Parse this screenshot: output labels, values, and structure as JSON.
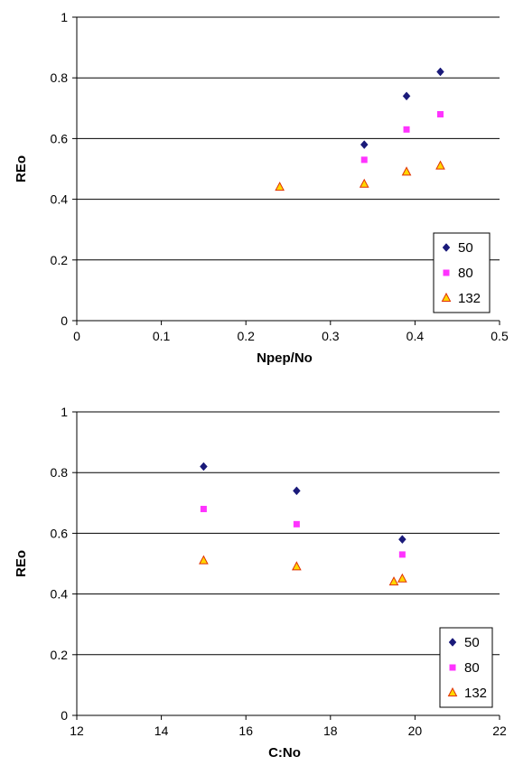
{
  "chart_data": [
    {
      "type": "scatter",
      "xlabel": "Npep/No",
      "ylabel": "REo",
      "xlim": [
        0,
        0.5
      ],
      "ylim": [
        0,
        1
      ],
      "xticks": [
        "0",
        "0.1",
        "0.2",
        "0.3",
        "0.4",
        "0.5"
      ],
      "yticks": [
        "0",
        "0.2",
        "0.4",
        "0.6",
        "0.8",
        "1"
      ],
      "grid": "horizontal",
      "legend_position": "bottom-right",
      "series": [
        {
          "name": "50",
          "marker": "diamond",
          "color": "#1a1a7a",
          "points": [
            [
              0.34,
              0.58
            ],
            [
              0.39,
              0.74
            ],
            [
              0.43,
              0.82
            ]
          ]
        },
        {
          "name": "80",
          "marker": "square",
          "color": "#ff33ff",
          "points": [
            [
              0.34,
              0.53
            ],
            [
              0.39,
              0.63
            ],
            [
              0.43,
              0.68
            ]
          ]
        },
        {
          "name": "132",
          "marker": "triangle",
          "color": "#ffd700",
          "stroke": "#e03000",
          "points": [
            [
              0.24,
              0.44
            ],
            [
              0.34,
              0.45
            ],
            [
              0.39,
              0.49
            ],
            [
              0.43,
              0.51
            ]
          ]
        }
      ]
    },
    {
      "type": "scatter",
      "xlabel": "C:No",
      "ylabel": "REo",
      "xlim": [
        12,
        22
      ],
      "ylim": [
        0,
        1
      ],
      "xticks": [
        "12",
        "14",
        "16",
        "18",
        "20",
        "22"
      ],
      "yticks": [
        "0",
        "0.2",
        "0.4",
        "0.6",
        "0.8",
        "1"
      ],
      "grid": "horizontal",
      "legend_position": "bottom-right",
      "series": [
        {
          "name": "50",
          "marker": "diamond",
          "color": "#1a1a7a",
          "points": [
            [
              15.0,
              0.82
            ],
            [
              17.2,
              0.74
            ],
            [
              19.7,
              0.58
            ]
          ]
        },
        {
          "name": "80",
          "marker": "square",
          "color": "#ff33ff",
          "points": [
            [
              15.0,
              0.68
            ],
            [
              17.2,
              0.63
            ],
            [
              19.7,
              0.53
            ]
          ]
        },
        {
          "name": "132",
          "marker": "triangle",
          "color": "#ffd700",
          "stroke": "#e03000",
          "points": [
            [
              15.0,
              0.51
            ],
            [
              17.2,
              0.49
            ],
            [
              19.5,
              0.44
            ],
            [
              19.7,
              0.45
            ]
          ]
        }
      ]
    }
  ]
}
